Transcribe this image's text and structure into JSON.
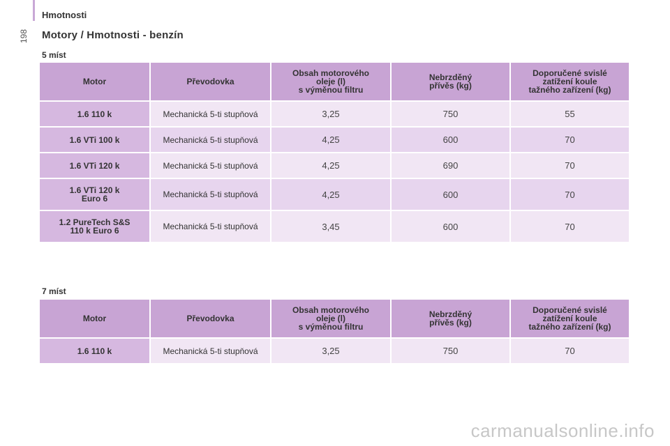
{
  "page": {
    "section_tag": "Hmotnosti",
    "page_number": "198",
    "title": "Motory / Hmotnosti - benzín"
  },
  "colors": {
    "header_bg": "#c8a4d4",
    "motor_bg": "#d6b8e0",
    "row_light": "#f1e6f4",
    "row_dark": "#e7d5ee"
  },
  "tables": [
    {
      "subtitle": "5 míst",
      "headers": {
        "motor": "Motor",
        "gearbox": "Převodovka",
        "oil": [
          "Obsah motorového",
          "oleje (l)",
          "s výměnou filtru"
        ],
        "trailer": [
          "Nebrzděný",
          "přívěs (kg)"
        ],
        "towball": [
          "Doporučené svislé",
          "zatížení koule",
          "tažného zařízení (kg)"
        ]
      },
      "rows": [
        {
          "motor": [
            "1.6 110 k"
          ],
          "gearbox": "Mechanická 5-ti stupňová",
          "oil": "3,25",
          "trailer": "750",
          "towball": "55"
        },
        {
          "motor": [
            "1.6 VTi 100 k"
          ],
          "gearbox": "Mechanická 5-ti stupňová",
          "oil": "4,25",
          "trailer": "600",
          "towball": "70"
        },
        {
          "motor": [
            "1.6 VTi 120 k"
          ],
          "gearbox": "Mechanická 5-ti stupňová",
          "oil": "4,25",
          "trailer": "690",
          "towball": "70"
        },
        {
          "motor": [
            "1.6 VTi 120 k",
            "Euro 6"
          ],
          "gearbox": "Mechanická 5-ti stupňová",
          "oil": "4,25",
          "trailer": "600",
          "towball": "70"
        },
        {
          "motor": [
            "1.2 PureTech S&S",
            "110 k Euro 6"
          ],
          "gearbox": "Mechanická 5-ti stupňová",
          "oil": "3,45",
          "trailer": "600",
          "towball": "70"
        }
      ]
    },
    {
      "subtitle": "7 míst",
      "headers": {
        "motor": "Motor",
        "gearbox": "Převodovka",
        "oil": [
          "Obsah motorového",
          "oleje (l)",
          "s výměnou filtru"
        ],
        "trailer": [
          "Nebrzděný",
          "přívěs (kg)"
        ],
        "towball": [
          "Doporučené svislé",
          "zatížení koule",
          "tažného zařízení (kg)"
        ]
      },
      "rows": [
        {
          "motor": [
            "1.6 110 k"
          ],
          "gearbox": "Mechanická 5-ti stupňová",
          "oil": "3,25",
          "trailer": "750",
          "towball": "70"
        }
      ]
    }
  ],
  "watermark": "carmanualsonline.info"
}
